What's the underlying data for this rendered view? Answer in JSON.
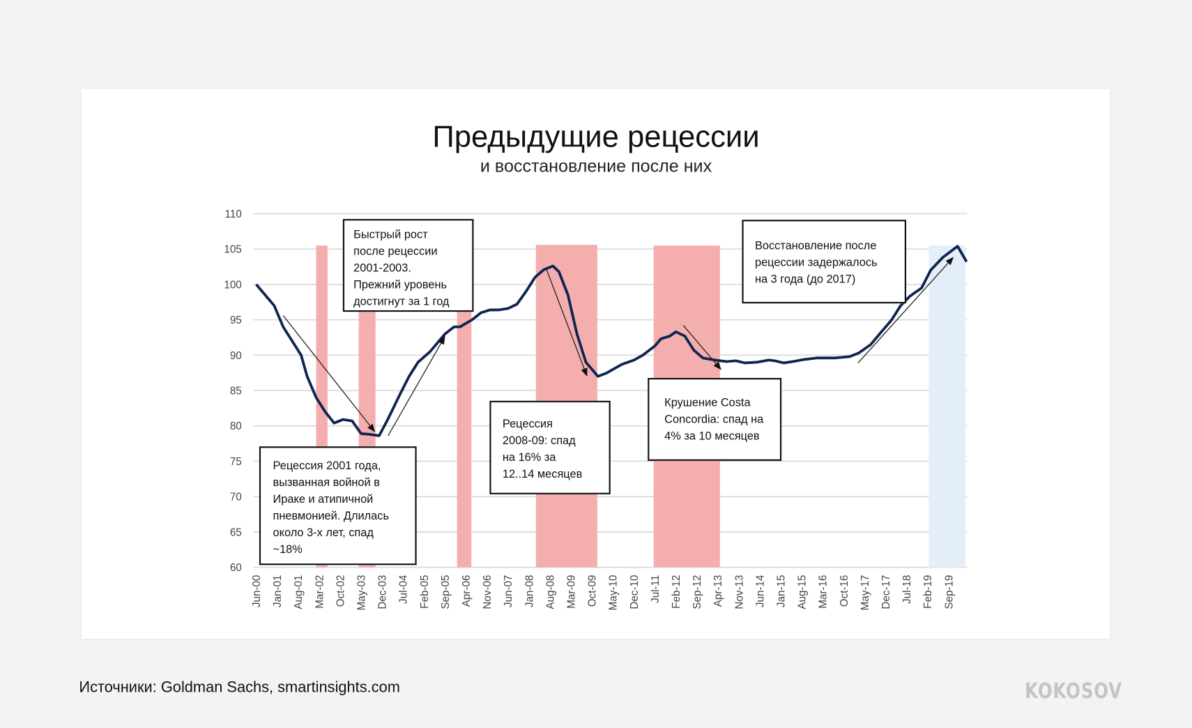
{
  "chart_data": {
    "type": "line",
    "title": "Предыдущие рецессии",
    "subtitle": "и восстановление после них",
    "xlabel": "",
    "ylabel": "",
    "ylim": [
      60,
      110
    ],
    "yticks": [
      60,
      65,
      70,
      75,
      80,
      85,
      90,
      95,
      100,
      105,
      110
    ],
    "grid": true,
    "x_unit": "months since Jun-00",
    "x_tick_labels": [
      "Jun-00",
      "Jan-01",
      "Aug-01",
      "Mar-02",
      "Oct-02",
      "May-03",
      "Dec-03",
      "Jul-04",
      "Feb-05",
      "Sep-05",
      "Apr-06",
      "Nov-06",
      "Jun-07",
      "Jan-08",
      "Aug-08",
      "Mar-09",
      "Oct-09",
      "May-10",
      "Dec-10",
      "Jul-11",
      "Feb-12",
      "Sep-12",
      "Apr-13",
      "Nov-13",
      "Jun-14",
      "Jan-15",
      "Aug-15",
      "Mar-16",
      "Oct-16",
      "May-17",
      "Dec-17",
      "Jul-18",
      "Feb-19",
      "Sep-19"
    ],
    "x_tick_step_months": 7,
    "series": [
      {
        "name": "index",
        "color": "#0f2550",
        "points": [
          [
            0,
            100
          ],
          [
            3,
            98.5
          ],
          [
            6,
            97
          ],
          [
            9,
            94
          ],
          [
            12,
            92
          ],
          [
            15,
            90
          ],
          [
            17,
            87
          ],
          [
            20,
            84
          ],
          [
            23,
            82
          ],
          [
            26,
            80.4
          ],
          [
            29,
            80.9
          ],
          [
            32,
            80.7
          ],
          [
            35,
            78.9
          ],
          [
            38,
            78.8
          ],
          [
            41,
            78.6
          ],
          [
            44,
            81
          ],
          [
            48,
            84.5
          ],
          [
            51,
            87
          ],
          [
            54,
            89
          ],
          [
            58,
            90.5
          ],
          [
            61,
            92
          ],
          [
            63,
            93
          ],
          [
            66,
            94
          ],
          [
            68,
            94
          ],
          [
            72,
            95
          ],
          [
            75,
            96
          ],
          [
            78,
            96.4
          ],
          [
            81,
            96.4
          ],
          [
            84,
            96.6
          ],
          [
            87,
            97.2
          ],
          [
            90,
            99
          ],
          [
            93,
            101
          ],
          [
            96,
            102.1
          ],
          [
            99,
            102.6
          ],
          [
            101,
            101.8
          ],
          [
            104,
            98.5
          ],
          [
            107,
            93
          ],
          [
            110,
            89
          ],
          [
            114,
            87
          ],
          [
            117,
            87.5
          ],
          [
            122,
            88.7
          ],
          [
            126,
            89.3
          ],
          [
            129,
            90
          ],
          [
            133,
            91.3
          ],
          [
            135,
            92.3
          ],
          [
            138,
            92.7
          ],
          [
            140,
            93.3
          ],
          [
            143,
            92.7
          ],
          [
            146,
            90.7
          ],
          [
            149,
            89.6
          ],
          [
            153,
            89.3
          ],
          [
            157,
            89.1
          ],
          [
            160,
            89.2
          ],
          [
            163,
            88.9
          ],
          [
            167,
            89
          ],
          [
            171,
            89.3
          ],
          [
            173,
            89.2
          ],
          [
            176,
            88.9
          ],
          [
            179,
            89.1
          ],
          [
            183,
            89.4
          ],
          [
            187,
            89.6
          ],
          [
            193,
            89.6
          ],
          [
            198,
            89.8
          ],
          [
            201,
            90.3
          ],
          [
            205,
            91.5
          ],
          [
            208,
            93
          ],
          [
            212,
            95
          ],
          [
            215,
            97
          ],
          [
            218,
            98.3
          ],
          [
            222,
            99.5
          ],
          [
            225,
            102
          ],
          [
            229,
            103.8
          ],
          [
            234,
            105.4
          ],
          [
            237,
            103.2
          ]
        ]
      }
    ],
    "shaded_regions": [
      {
        "kind": "recession",
        "from": 20,
        "to": 23.8,
        "top": 105.5,
        "color": "#f4aeae"
      },
      {
        "kind": "recession",
        "from": 34.2,
        "to": 39.8,
        "top": 105.5,
        "color": "#f4aeae"
      },
      {
        "kind": "recession",
        "from": 67,
        "to": 71.8,
        "top": 105.5,
        "color": "#f4aeae"
      },
      {
        "kind": "recession",
        "from": 93.3,
        "to": 113.8,
        "top": 105.6,
        "color": "#f4aeae"
      },
      {
        "kind": "recession",
        "from": 132.6,
        "to": 154.7,
        "top": 105.5,
        "color": "#f4aeae"
      },
      {
        "kind": "current",
        "from": 224.4,
        "to": 236.6,
        "top": 105.5,
        "color": "#e4eef9"
      }
    ],
    "annotations": [
      {
        "lines": [
          "Быстрый рост",
          "после рецессии",
          "2001-2003.",
          "Прежний уровень",
          "достигнут за 1 год"
        ],
        "arrow": [
          [
            9,
            95.6
          ],
          [
            39.5,
            79.2
          ]
        ]
      },
      {
        "lines": [
          "Рецессия 2001 года,",
          "вызванная войной в",
          "Ираке и атипичной",
          "пневмонией. Длилась",
          "около 3-х лет, спад",
          "~18%"
        ],
        "arrow": [
          [
            44,
            78.6
          ],
          [
            62.9,
            92.6
          ]
        ]
      },
      {
        "lines": [
          "Рецессия",
          "2008-09: спад",
          "на 16% за",
          "12..14 месяцев"
        ],
        "arrow": [
          [
            96.6,
            102.4
          ],
          [
            110.3,
            87.1
          ]
        ]
      },
      {
        "lines": [
          "Крушение Costa",
          "Concordia: спад на",
          "4% за 10 месяцев"
        ],
        "arrow": [
          [
            142.5,
            94.2
          ],
          [
            155,
            88
          ]
        ]
      },
      {
        "lines": [
          "Восстановление после",
          "рецессии задержалось",
          "на 3 года (до 2017)"
        ],
        "arrow": [
          [
            200.8,
            88.9
          ],
          [
            232.5,
            103.8
          ]
        ]
      }
    ]
  },
  "footer": {
    "source": "Источники: Goldman Sachs, smartinsights.com",
    "logo": "KOKOSOV"
  }
}
